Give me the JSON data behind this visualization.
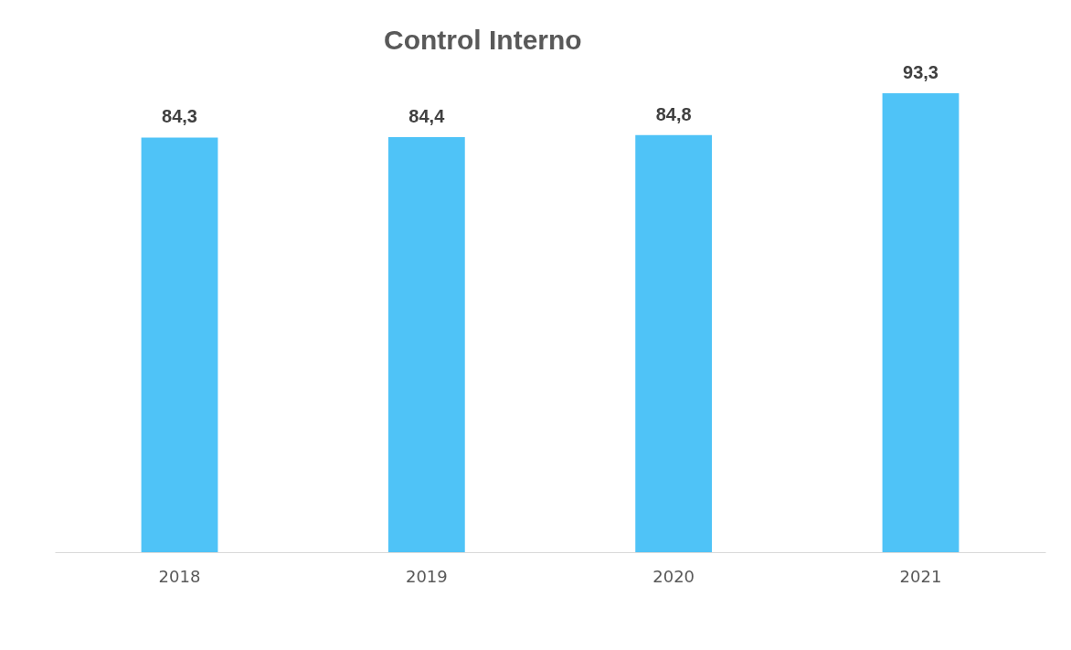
{
  "chart_data": {
    "type": "bar",
    "title": "Control Interno",
    "categories": [
      "2018",
      "2019",
      "2020",
      "2021"
    ],
    "values": [
      84.3,
      84.4,
      84.8,
      93.3
    ],
    "color": "#4fc3f7",
    "value_labels": [
      "84,3",
      "84,4",
      "84,8",
      "93,3"
    ],
    "tick_labels": "x",
    "grid": false
  }
}
